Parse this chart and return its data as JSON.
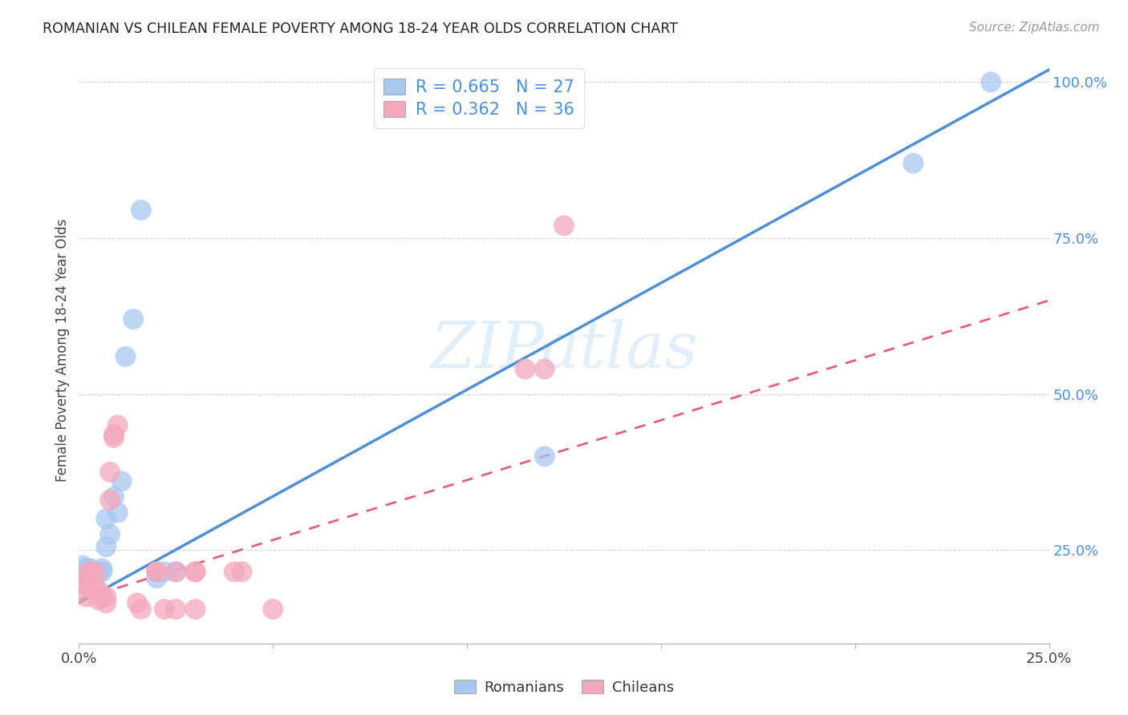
{
  "title": "ROMANIAN VS CHILEAN FEMALE POVERTY AMONG 18-24 YEAR OLDS CORRELATION CHART",
  "source": "Source: ZipAtlas.com",
  "ylabel": "Female Poverty Among 18-24 Year Olds",
  "xlim": [
    0.0,
    0.25
  ],
  "ylim": [
    0.1,
    1.04
  ],
  "xtick_positions": [
    0.0,
    0.05,
    0.1,
    0.15,
    0.2,
    0.25
  ],
  "xtick_labels": [
    "0.0%",
    "",
    "",
    "",
    "",
    "25.0%"
  ],
  "ytick_values": [
    0.25,
    0.5,
    0.75,
    1.0
  ],
  "ytick_labels": [
    "25.0%",
    "50.0%",
    "75.0%",
    "100.0%"
  ],
  "romanian_color": "#a8c8f0",
  "chilean_color": "#f4a8bc",
  "romanian_line_color": "#5090d0",
  "chilean_line_color": "#e06080",
  "legend_text_color": "#4a90d9",
  "watermark_color": "#d0e4f8",
  "legend_R_romanian": "R = 0.665",
  "legend_N_romanian": "N = 27",
  "legend_R_chilean": "R = 0.362",
  "legend_N_chilean": "N = 36",
  "romanian_x": [
    0.001,
    0.001,
    0.002,
    0.002,
    0.003,
    0.003,
    0.004,
    0.004,
    0.005,
    0.005,
    0.006,
    0.006,
    0.007,
    0.007,
    0.008,
    0.009,
    0.01,
    0.011,
    0.012,
    0.014,
    0.016,
    0.02,
    0.022,
    0.025,
    0.12,
    0.215,
    0.235
  ],
  "romanian_y": [
    0.215,
    0.225,
    0.22,
    0.215,
    0.21,
    0.22,
    0.21,
    0.215,
    0.215,
    0.215,
    0.22,
    0.215,
    0.3,
    0.255,
    0.275,
    0.335,
    0.31,
    0.36,
    0.56,
    0.62,
    0.795,
    0.205,
    0.215,
    0.215,
    0.4,
    0.87,
    1.0
  ],
  "chilean_x": [
    0.001,
    0.001,
    0.002,
    0.002,
    0.003,
    0.003,
    0.004,
    0.004,
    0.004,
    0.005,
    0.005,
    0.006,
    0.006,
    0.007,
    0.007,
    0.008,
    0.008,
    0.009,
    0.009,
    0.01,
    0.015,
    0.016,
    0.02,
    0.02,
    0.022,
    0.025,
    0.025,
    0.03,
    0.03,
    0.04,
    0.042,
    0.05,
    0.115,
    0.12,
    0.125,
    0.03
  ],
  "chilean_y": [
    0.195,
    0.21,
    0.175,
    0.19,
    0.195,
    0.215,
    0.195,
    0.21,
    0.215,
    0.17,
    0.185,
    0.175,
    0.175,
    0.175,
    0.165,
    0.33,
    0.375,
    0.435,
    0.43,
    0.45,
    0.165,
    0.155,
    0.215,
    0.215,
    0.155,
    0.215,
    0.155,
    0.215,
    0.215,
    0.215,
    0.215,
    0.155,
    0.54,
    0.54,
    0.77,
    0.155
  ],
  "background_color": "#ffffff",
  "grid_color": "#cccccc",
  "rom_line_x0": 0.0,
  "rom_line_y0": 0.165,
  "rom_line_x1": 0.25,
  "rom_line_y1": 1.02,
  "chi_line_x0": 0.0,
  "chi_line_y0": 0.17,
  "chi_line_x1": 0.25,
  "chi_line_y1": 0.65
}
